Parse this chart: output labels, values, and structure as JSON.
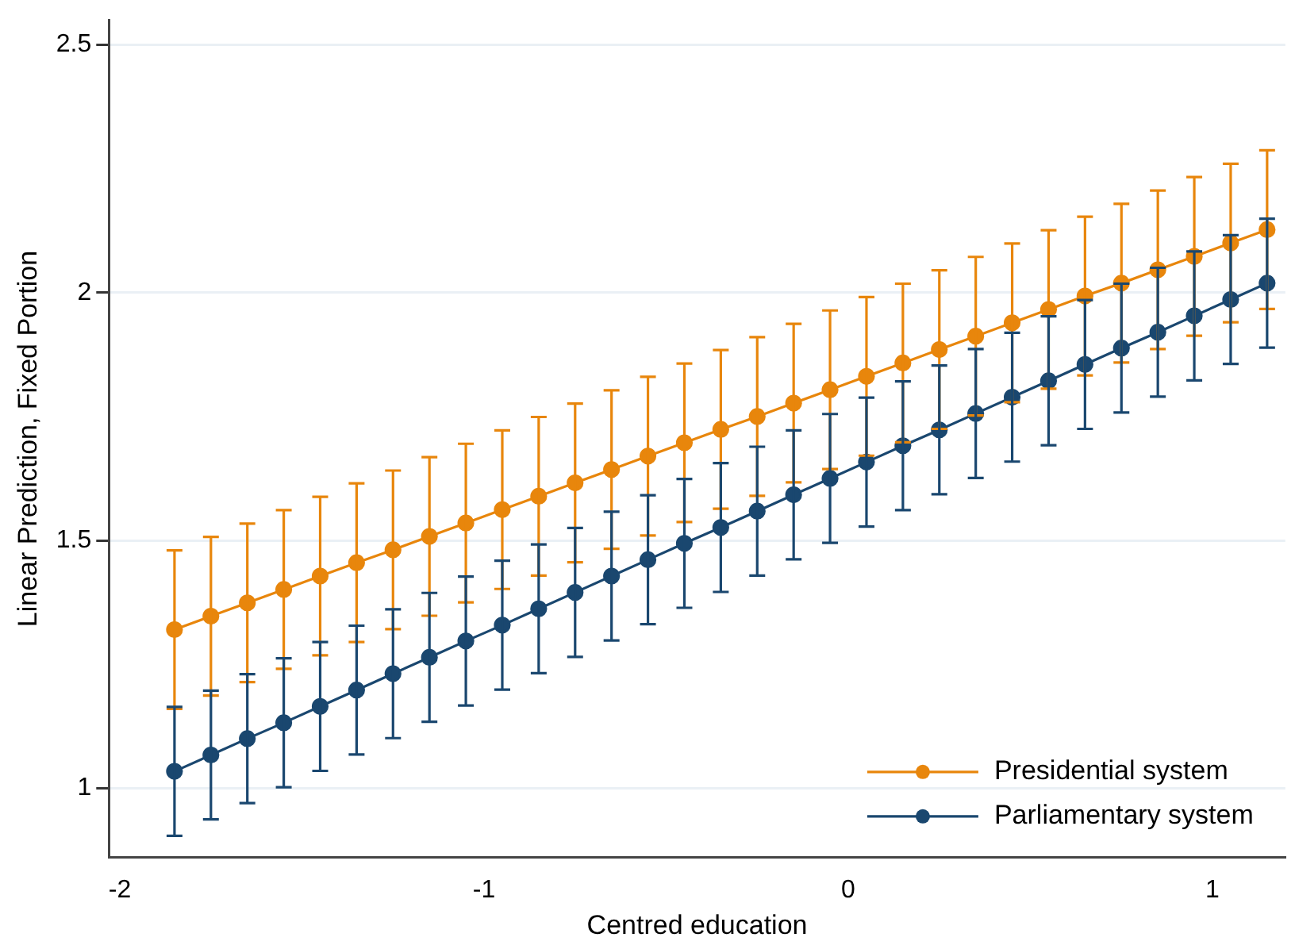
{
  "chart_data": {
    "type": "line",
    "xlabel": "Centred education",
    "ylabel": "Linear Prediction, Fixed Portion",
    "x": [
      -1.85,
      -1.75,
      -1.65,
      -1.55,
      -1.45,
      -1.35,
      -1.25,
      -1.15,
      -1.05,
      -0.95,
      -0.85,
      -0.75,
      -0.65,
      -0.55,
      -0.45,
      -0.35,
      -0.25,
      -0.15,
      -0.05,
      0.05,
      0.15,
      0.25,
      0.35,
      0.45,
      0.55,
      0.65,
      0.75,
      0.85,
      0.95,
      1.05,
      1.15
    ],
    "series": [
      {
        "name": "Presidential system",
        "color": "#e8860c",
        "values": [
          1.32,
          1.347,
          1.374,
          1.401,
          1.428,
          1.455,
          1.481,
          1.508,
          1.535,
          1.562,
          1.589,
          1.616,
          1.643,
          1.67,
          1.697,
          1.724,
          1.75,
          1.777,
          1.804,
          1.831,
          1.858,
          1.885,
          1.912,
          1.939,
          1.966,
          1.993,
          2.019,
          2.046,
          2.073,
          2.1,
          2.127
        ],
        "errors": [
          0.16,
          0.16,
          0.16,
          0.16,
          0.16,
          0.16,
          0.16,
          0.16,
          0.16,
          0.16,
          0.16,
          0.16,
          0.16,
          0.16,
          0.16,
          0.16,
          0.16,
          0.16,
          0.16,
          0.16,
          0.16,
          0.16,
          0.16,
          0.16,
          0.16,
          0.16,
          0.16,
          0.16,
          0.16,
          0.16,
          0.16
        ]
      },
      {
        "name": "Parliamentary system",
        "color": "#1a476f",
        "values": [
          1.034,
          1.067,
          1.1,
          1.132,
          1.165,
          1.198,
          1.231,
          1.264,
          1.297,
          1.329,
          1.362,
          1.395,
          1.428,
          1.461,
          1.494,
          1.526,
          1.559,
          1.592,
          1.625,
          1.658,
          1.691,
          1.723,
          1.756,
          1.789,
          1.822,
          1.855,
          1.888,
          1.92,
          1.953,
          1.986,
          2.019
        ],
        "errors": [
          0.13,
          0.13,
          0.13,
          0.13,
          0.13,
          0.13,
          0.13,
          0.13,
          0.13,
          0.13,
          0.13,
          0.13,
          0.13,
          0.13,
          0.13,
          0.13,
          0.13,
          0.13,
          0.13,
          0.13,
          0.13,
          0.13,
          0.13,
          0.13,
          0.13,
          0.13,
          0.13,
          0.13,
          0.13,
          0.13,
          0.13
        ]
      }
    ],
    "xlim": [
      -2.03,
      1.2
    ],
    "xticks": [
      -2,
      -1,
      0,
      1
    ],
    "ylim": [
      0.86,
      2.55
    ],
    "yticks": [
      1,
      1.5,
      2,
      2.5
    ],
    "grid": "y",
    "legend": "bottom right",
    "marker": "circle",
    "line_style": "solid"
  }
}
